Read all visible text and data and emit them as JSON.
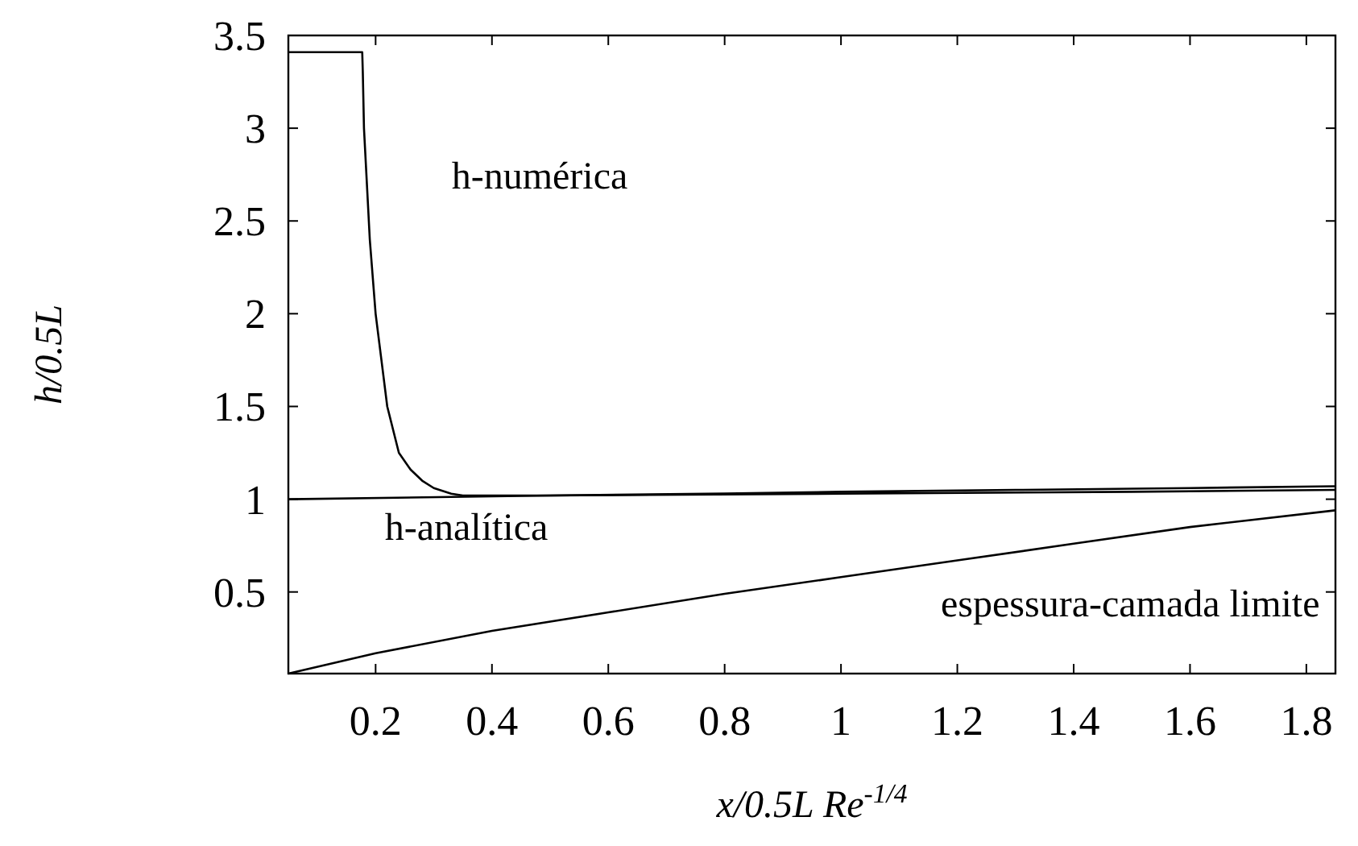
{
  "chart_data": {
    "type": "line",
    "xlabel": "x/0.5L Re$^{-1/4}$",
    "ylabel": "h/0.5L",
    "xlim": [
      0.05,
      1.85
    ],
    "xticks": [
      0.2,
      0.4,
      0.6,
      0.8,
      1,
      1.2,
      1.4,
      1.6,
      1.8
    ],
    "ylim": [
      0.06,
      3.5
    ],
    "yticks": [
      0.5,
      1,
      1.5,
      2,
      2.5,
      3,
      3.5
    ],
    "grid": false,
    "marker": "none",
    "line_style": "solid",
    "series": [
      {
        "name": "h-numérica",
        "color": "#000000",
        "x": [
          0.05,
          0.177,
          0.178,
          0.18,
          0.185,
          0.19,
          0.2,
          0.21,
          0.22,
          0.24,
          0.26,
          0.28,
          0.3,
          0.33,
          0.35,
          0.5,
          0.8,
          1.0,
          1.3,
          1.6,
          1.85
        ],
        "values": [
          3.41,
          3.41,
          3.3,
          3.0,
          2.7,
          2.4,
          2.0,
          1.75,
          1.5,
          1.25,
          1.16,
          1.1,
          1.06,
          1.03,
          1.02,
          1.02,
          1.03,
          1.04,
          1.05,
          1.06,
          1.07
        ]
      },
      {
        "name": "h-analítica",
        "color": "#000000",
        "x": [
          0.05,
          0.5,
          1.0,
          1.5,
          1.85
        ],
        "values": [
          1.0,
          1.02,
          1.03,
          1.04,
          1.05
        ]
      },
      {
        "name": "espessura-camada limite",
        "color": "#000000",
        "x": [
          0.05,
          0.2,
          0.4,
          0.6,
          0.8,
          1.0,
          1.2,
          1.4,
          1.6,
          1.85
        ],
        "values": [
          0.06,
          0.17,
          0.29,
          0.39,
          0.49,
          0.58,
          0.67,
          0.76,
          0.85,
          0.94
        ]
      }
    ]
  }
}
